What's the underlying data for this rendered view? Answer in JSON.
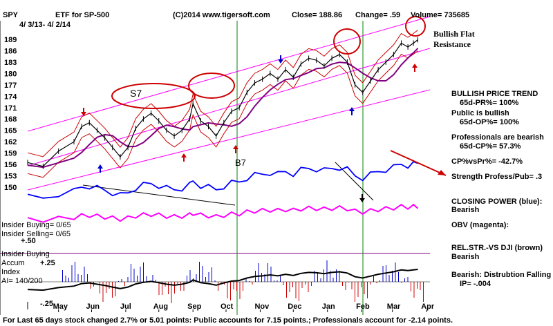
{
  "header": {
    "ticker": "SPY",
    "title": "ETF for SP-500",
    "date_range": "4/ 3/13- 4/ 2/14",
    "copyright": "(C)2014 www.tigersoft.com",
    "close": "Close= 188.86",
    "change": "Change= .59",
    "volume": "Volume= 735685"
  },
  "annotations": {
    "bullish_flat": "Bullish Flat",
    "resistance": "Resistance",
    "s7": "S7",
    "b7": "B7"
  },
  "right_panel": [
    {
      "text": "BULLISH PRICE TREND",
      "indent": false
    },
    {
      "text": "65d-PR%= 100%",
      "indent": true
    },
    {
      "text": "Public is bullish",
      "indent": false
    },
    {
      "text": "65d-OP%= 100%",
      "indent": true
    },
    {
      "text": "Professionals are bearish",
      "indent": false
    },
    {
      "text": "65d-CP%= 57.3%",
      "indent": true
    },
    {
      "text": "CP%vsPr%= -42.7%",
      "indent": false
    },
    {
      "text": "Strength Profess/Pub= .3",
      "indent": false
    },
    {
      "text": "CLOSING POWER (blue):",
      "indent": false
    },
    {
      "text": "Bearish",
      "indent": false
    },
    {
      "text": "OBV (magenta):",
      "indent": false
    },
    {
      "text": "REL.STR.-VS DJI (brown)",
      "indent": false
    },
    {
      "text": "Bearish",
      "indent": false
    },
    {
      "text": "Bearish: Distrubtion Falling",
      "indent": false
    },
    {
      "text": "IP= -.004",
      "indent": true
    }
  ],
  "insider": {
    "buying": "Insider Buying= 0/65",
    "selling": "Insider Selling= 0/65",
    "accum_title": "Insider Buying",
    "accum": "Accum",
    "index": "Index",
    "ai": "AI= 140/200",
    "p50": "+.50",
    "p25": "+.25",
    "m25": "-.25"
  },
  "footer": "For Last 65 days stock changed  2.7% or  5.01 points:  Public accounts for  7.15 points.;  Professionals account for -2.14 points.",
  "colors": {
    "price": "#000000",
    "bands": "#cc0000",
    "ma": "#800080",
    "channel": "#ff00ff",
    "closing_power": "#0000ff",
    "obv": "#ff00ff",
    "signal_arrow": "#cc0000",
    "volume_blue": "#0000cc",
    "volume_red": "#cc0000",
    "vertical_lines": "#008000"
  },
  "chart_data": {
    "type": "line",
    "title": "ETF for SP-500",
    "ylim": [
      147,
      191
    ],
    "y_ticks": [
      "189",
      "186",
      "183",
      "180",
      "177",
      "174",
      "171",
      "168",
      "165",
      "162",
      "159",
      "156",
      "153",
      "150"
    ],
    "x_ticks": [
      "May",
      "Jun",
      "Jul",
      "Aug",
      "Sep",
      "Oct",
      "Nov",
      "Dec",
      "Jan",
      "Feb",
      "Mar",
      "Apr"
    ],
    "x_tick_days": [
      28,
      58,
      89,
      119,
      150,
      180,
      211,
      241,
      272,
      303,
      331,
      362
    ],
    "series": [
      {
        "name": "SPY",
        "x": [
          0,
          14,
          28,
          42,
          49,
          56,
          63,
          70,
          77,
          84,
          91,
          98,
          105,
          112,
          119,
          126,
          133,
          140,
          147,
          150,
          157,
          164,
          171,
          178,
          185,
          192,
          199,
          206,
          213,
          220,
          227,
          234,
          241,
          248,
          255,
          262,
          269,
          276,
          283,
          290,
          297,
          304,
          311,
          318,
          325,
          332,
          339,
          345,
          350,
          354
        ],
        "y": [
          156.5,
          155.5,
          159.5,
          162,
          166,
          167,
          165,
          163,
          160.5,
          158,
          160.5,
          165.5,
          168,
          169.5,
          167.5,
          165,
          163.5,
          165,
          168,
          172,
          167.5,
          166,
          163.5,
          167,
          170,
          171,
          175,
          177.5,
          178.5,
          180,
          178.5,
          181,
          179,
          182.5,
          184,
          183.5,
          182,
          184,
          185,
          183,
          177,
          175,
          178,
          181,
          183,
          185,
          188,
          187,
          188,
          188.9
        ]
      }
    ],
    "date_range": "4/ 3/13- 4/ 2/14",
    "close": 188.86,
    "change": 0.59,
    "volume": 735685,
    "grid": false
  }
}
